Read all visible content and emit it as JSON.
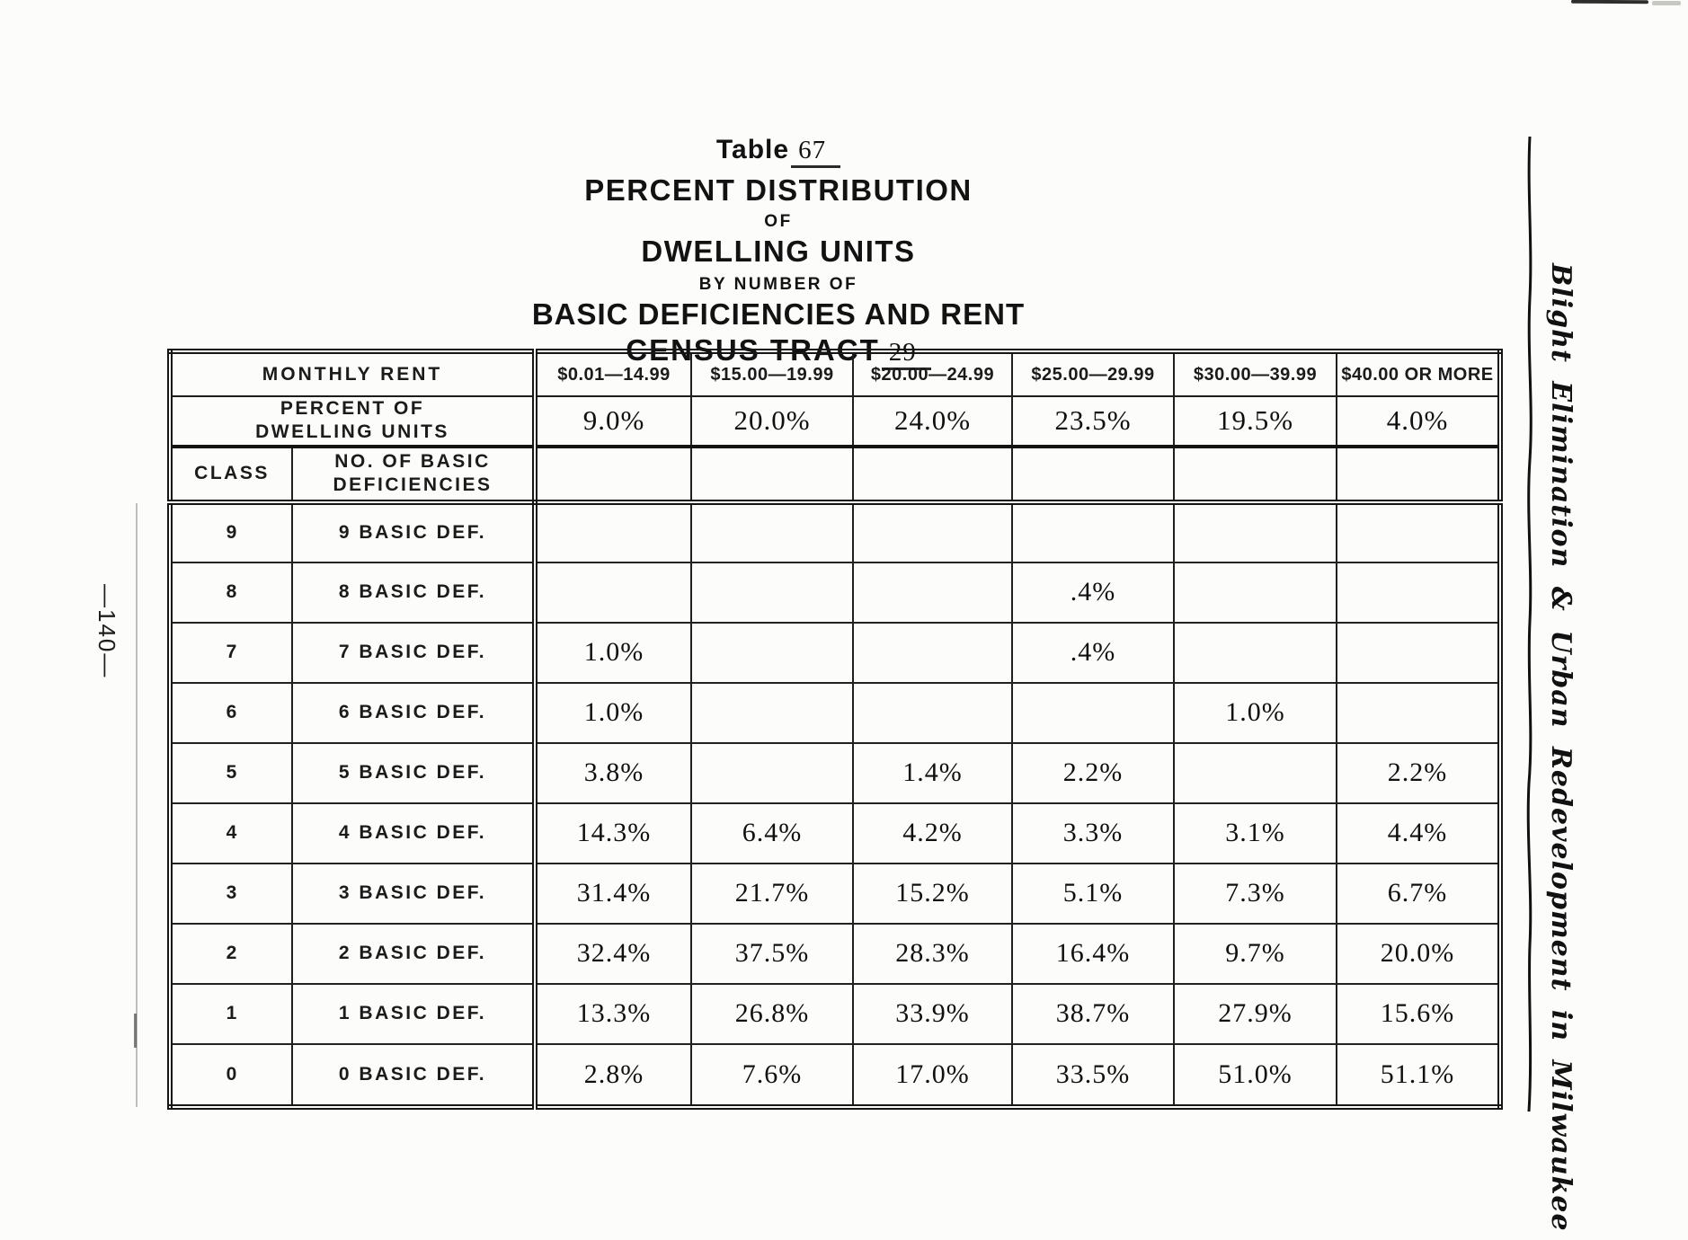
{
  "page": {
    "page_number": "—140—",
    "sidebar_title": "Blight Elimination & Urban Redevelopment in Milwaukee"
  },
  "title_block": {
    "table_label": "Table",
    "table_number": "67",
    "line2": "PERCENT DISTRIBUTION",
    "line3": "OF",
    "line4": "DWELLING UNITS",
    "line5": "BY NUMBER OF",
    "line6": "BASIC DEFICIENCIES AND RENT",
    "census_label": "CENSUS TRACT",
    "census_number": "29"
  },
  "colors": {
    "ink": "#161616",
    "paper": "#fcfcfb"
  },
  "chart_data": {
    "type": "table",
    "title": "Table 67 — Percent Distribution of Dwelling Units by Number of Basic Deficiencies and Rent, Census Tract 29",
    "monthly_rent_label": "MONTHLY RENT",
    "rent_columns": [
      "$0.01—14.99",
      "$15.00—19.99",
      "$20.00—24.99",
      "$25.00—29.99",
      "$30.00—39.99",
      "$40.00 OR MORE"
    ],
    "percent_label_line1": "PERCENT OF",
    "percent_label_line2": "DWELLING UNITS",
    "percent_of_dwelling_units": [
      "9.0%",
      "20.0%",
      "24.0%",
      "23.5%",
      "19.5%",
      "4.0%"
    ],
    "class_header": "CLASS",
    "deficiency_header_line1": "NO. OF BASIC",
    "deficiency_header_line2": "DEFICIENCIES",
    "rows": [
      {
        "class": "9",
        "label": "9 BASIC DEF.",
        "values": [
          "",
          "",
          "",
          "",
          "",
          ""
        ]
      },
      {
        "class": "8",
        "label": "8 BASIC DEF.",
        "values": [
          "",
          "",
          "",
          ".4%",
          "",
          ""
        ]
      },
      {
        "class": "7",
        "label": "7 BASIC DEF.",
        "values": [
          "1.0%",
          "",
          "",
          ".4%",
          "",
          ""
        ]
      },
      {
        "class": "6",
        "label": "6 BASIC DEF.",
        "values": [
          "1.0%",
          "",
          "",
          "",
          "1.0%",
          ""
        ]
      },
      {
        "class": "5",
        "label": "5 BASIC DEF.",
        "values": [
          "3.8%",
          "",
          "1.4%",
          "2.2%",
          "",
          "2.2%"
        ]
      },
      {
        "class": "4",
        "label": "4 BASIC DEF.",
        "values": [
          "14.3%",
          "6.4%",
          "4.2%",
          "3.3%",
          "3.1%",
          "4.4%"
        ]
      },
      {
        "class": "3",
        "label": "3 BASIC DEF.",
        "values": [
          "31.4%",
          "21.7%",
          "15.2%",
          "5.1%",
          "7.3%",
          "6.7%"
        ]
      },
      {
        "class": "2",
        "label": "2 BASIC DEF.",
        "values": [
          "32.4%",
          "37.5%",
          "28.3%",
          "16.4%",
          "9.7%",
          "20.0%"
        ]
      },
      {
        "class": "1",
        "label": "1 BASIC DEF.",
        "values": [
          "13.3%",
          "26.8%",
          "33.9%",
          "38.7%",
          "27.9%",
          "15.6%"
        ]
      },
      {
        "class": "0",
        "label": "0 BASIC DEF.",
        "values": [
          "2.8%",
          "7.6%",
          "17.0%",
          "33.5%",
          "51.0%",
          "51.1%"
        ]
      }
    ]
  }
}
